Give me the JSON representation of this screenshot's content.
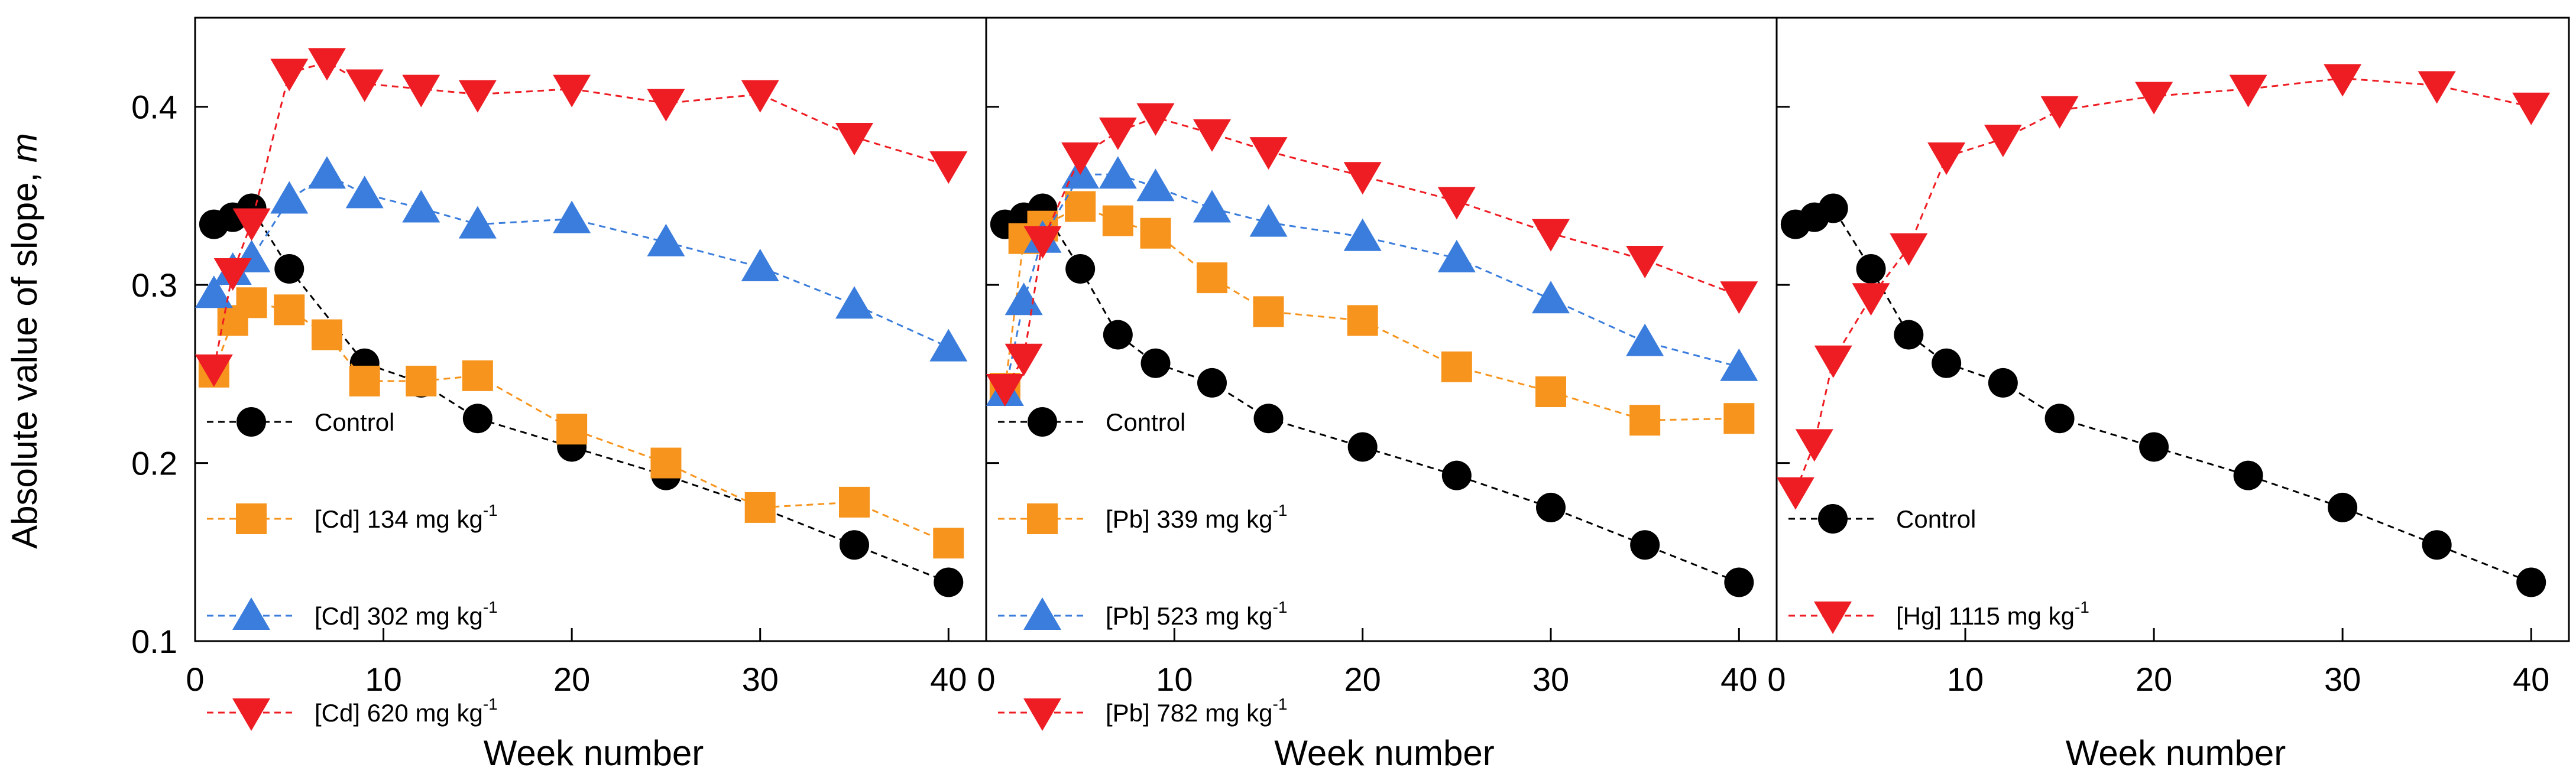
{
  "ylabel": "Absolute value of slope, m",
  "chart_data": [
    {
      "type": "line",
      "panel": "Cd",
      "xlabel": "Week number",
      "ylabel": "Absolute value of slope, m",
      "xlim": [
        0,
        42
      ],
      "ylim": [
        0.1,
        0.45
      ],
      "xticks": [
        0,
        10,
        20,
        30,
        40
      ],
      "yticks": [
        0.1,
        0.2,
        0.3,
        0.4
      ],
      "legend_position": "bottom-left",
      "series": [
        {
          "name": "Control",
          "label_main": "Control",
          "label_unit": "",
          "label_sup": "",
          "color": "#000000",
          "marker": "circle",
          "x": [
            1,
            2,
            3,
            5,
            9,
            12,
            15,
            20,
            25,
            30,
            35,
            40
          ],
          "y": [
            0.334,
            0.338,
            0.343,
            0.309,
            0.256,
            0.245,
            0.225,
            0.209,
            0.193,
            0.175,
            0.154,
            0.133
          ]
        },
        {
          "name": "[Cd] 134 mg kg-1",
          "label_main": "[Cd] 134 mg kg",
          "label_unit": "",
          "label_sup": "-1",
          "color": "#F7941D",
          "marker": "square",
          "x": [
            1,
            2,
            3,
            5,
            7,
            9,
            12,
            15,
            20,
            25,
            30,
            35,
            40
          ],
          "y": [
            0.251,
            0.28,
            0.29,
            0.286,
            0.272,
            0.246,
            0.246,
            0.249,
            0.219,
            0.2,
            0.175,
            0.178,
            0.155
          ]
        },
        {
          "name": "[Cd] 302 mg kg-1",
          "label_main": "[Cd] 302 mg kg",
          "label_unit": "",
          "label_sup": "-1",
          "color": "#3B7DDD",
          "marker": "triangle-up",
          "x": [
            1,
            2,
            3,
            5,
            7,
            9,
            12,
            15,
            20,
            25,
            30,
            35,
            40
          ],
          "y": [
            0.295,
            0.308,
            0.315,
            0.348,
            0.362,
            0.351,
            0.343,
            0.334,
            0.337,
            0.324,
            0.31,
            0.289,
            0.265
          ]
        },
        {
          "name": "[Cd] 620 mg kg-1",
          "label_main": "[Cd] 620 mg kg",
          "label_unit": "",
          "label_sup": "-1",
          "color": "#EE1D23",
          "marker": "triangle-down",
          "x": [
            1,
            2,
            3,
            5,
            7,
            9,
            12,
            15,
            20,
            25,
            30,
            35,
            40
          ],
          "y": [
            0.253,
            0.307,
            0.335,
            0.419,
            0.425,
            0.413,
            0.41,
            0.407,
            0.41,
            0.402,
            0.407,
            0.383,
            0.367
          ]
        }
      ]
    },
    {
      "type": "line",
      "panel": "Pb",
      "xlabel": "Week number",
      "ylabel": "Absolute value of slope, m",
      "xlim": [
        0,
        42
      ],
      "ylim": [
        0.1,
        0.45
      ],
      "xticks": [
        0,
        10,
        20,
        30,
        40
      ],
      "yticks": [
        0.1,
        0.2,
        0.3,
        0.4
      ],
      "legend_position": "bottom-left",
      "series": [
        {
          "name": "Control",
          "label_main": "Control",
          "label_unit": "",
          "label_sup": "",
          "color": "#000000",
          "marker": "circle",
          "x": [
            1,
            2,
            3,
            5,
            7,
            9,
            12,
            15,
            20,
            25,
            30,
            35,
            40
          ],
          "y": [
            0.334,
            0.338,
            0.343,
            0.309,
            0.272,
            0.256,
            0.245,
            0.225,
            0.209,
            0.193,
            0.175,
            0.154,
            0.133
          ]
        },
        {
          "name": "[Pb] 339 mg kg-1",
          "label_main": "[Pb] 339 mg kg",
          "label_unit": "",
          "label_sup": "-1",
          "color": "#F7941D",
          "marker": "square",
          "x": [
            1,
            2,
            3,
            5,
            7,
            9,
            12,
            15,
            20,
            25,
            30,
            35,
            40
          ],
          "y": [
            0.242,
            0.326,
            0.333,
            0.344,
            0.336,
            0.329,
            0.304,
            0.285,
            0.28,
            0.254,
            0.24,
            0.224,
            0.225
          ]
        },
        {
          "name": "[Pb] 523 mg kg-1",
          "label_main": "[Pb] 523 mg kg",
          "label_unit": "",
          "label_sup": "-1",
          "color": "#3B7DDD",
          "marker": "triangle-up",
          "x": [
            1,
            2,
            3,
            5,
            7,
            9,
            12,
            15,
            20,
            25,
            30,
            35,
            40
          ],
          "y": [
            0.24,
            0.291,
            0.326,
            0.362,
            0.362,
            0.355,
            0.343,
            0.335,
            0.327,
            0.315,
            0.292,
            0.268,
            0.254
          ]
        },
        {
          "name": "[Pb] 782 mg kg-1",
          "label_main": "[Pb] 782 mg kg",
          "label_unit": "",
          "label_sup": "-1",
          "color": "#EE1D23",
          "marker": "triangle-down",
          "x": [
            1,
            2,
            3,
            5,
            7,
            9,
            12,
            15,
            20,
            25,
            30,
            35,
            40
          ],
          "y": [
            0.242,
            0.259,
            0.325,
            0.372,
            0.386,
            0.394,
            0.385,
            0.375,
            0.361,
            0.347,
            0.329,
            0.314,
            0.294
          ]
        }
      ]
    },
    {
      "type": "line",
      "panel": "Hg",
      "xlabel": "Week number",
      "ylabel": "Absolute value of slope, m",
      "xlim": [
        0,
        42
      ],
      "ylim": [
        0.1,
        0.45
      ],
      "xticks": [
        0,
        10,
        20,
        30,
        40
      ],
      "yticks": [
        0.1,
        0.2,
        0.3,
        0.4
      ],
      "legend_position": "bottom-left",
      "series": [
        {
          "name": "Control",
          "label_main": "Control",
          "label_unit": "",
          "label_sup": "",
          "color": "#000000",
          "marker": "circle",
          "x": [
            1,
            2,
            3,
            5,
            7,
            9,
            12,
            15,
            20,
            25,
            30,
            35,
            40
          ],
          "y": [
            0.334,
            0.338,
            0.343,
            0.309,
            0.272,
            0.256,
            0.245,
            0.225,
            0.209,
            0.193,
            0.175,
            0.154,
            0.133
          ]
        },
        {
          "name": "[Hg] 1115 mg kg-1",
          "label_main": "[Hg] 1115 mg kg",
          "label_unit": "",
          "label_sup": "-1",
          "color": "#EE1D23",
          "marker": "triangle-down",
          "x": [
            1,
            2,
            3,
            5,
            7,
            9,
            12,
            15,
            20,
            25,
            30,
            35,
            40
          ],
          "y": [
            0.184,
            0.211,
            0.258,
            0.293,
            0.321,
            0.372,
            0.382,
            0.398,
            0.406,
            0.41,
            0.416,
            0.412,
            0.4
          ]
        }
      ]
    }
  ]
}
